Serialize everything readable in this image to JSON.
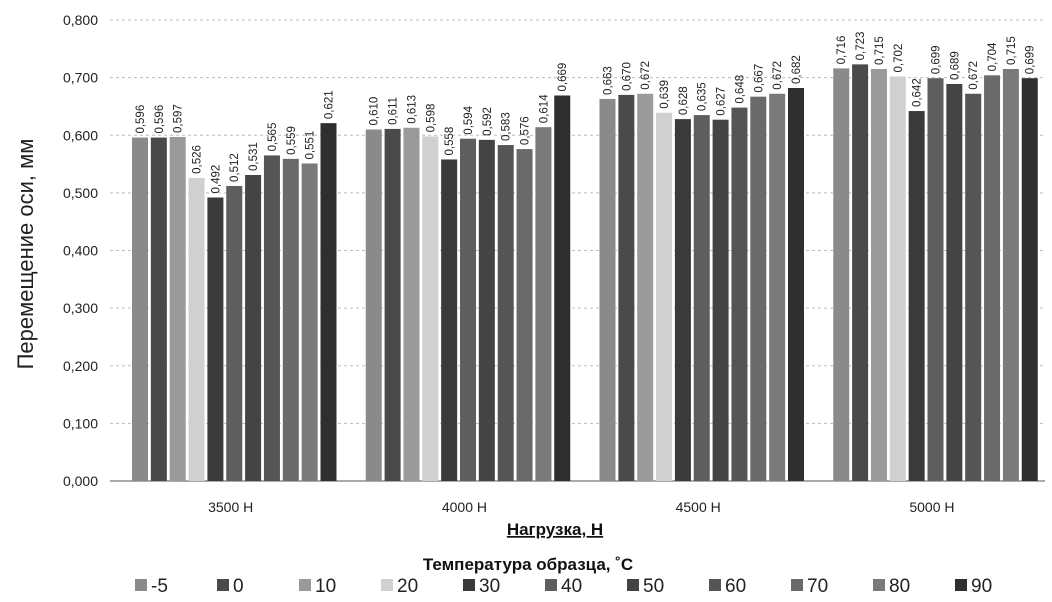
{
  "chart_data": {
    "type": "bar",
    "title": "",
    "xlabel": "Нагрузка, Н",
    "ylabel": "Перемещение оси, мм",
    "legend_title": "Температура образца, ˚С",
    "legend_position": "bottom",
    "grid": true,
    "ylim": [
      0,
      0.8
    ],
    "yticks": [
      "0,000",
      "0,100",
      "0,200",
      "0,300",
      "0,400",
      "0,500",
      "0,600",
      "0,700",
      "0,800"
    ],
    "categories": [
      "3500 Н",
      "4000 Н",
      "4500 Н",
      "5000 Н"
    ],
    "series": [
      {
        "name": "-5",
        "color": "#8a8a8a",
        "values": [
          0.596,
          0.61,
          0.663,
          0.716
        ],
        "labels": [
          "0,596",
          "0,610",
          "0,663",
          "0,716"
        ]
      },
      {
        "name": "0",
        "color": "#4a4a4a",
        "values": [
          0.596,
          0.611,
          0.67,
          0.723
        ],
        "labels": [
          "0,596",
          "0,611",
          "0,670",
          "0,723"
        ]
      },
      {
        "name": "10",
        "color": "#9a9a9a",
        "values": [
          0.597,
          0.613,
          0.672,
          0.715
        ],
        "labels": [
          "0,597",
          "0,613",
          "0,672",
          "0,715"
        ]
      },
      {
        "name": "20",
        "color": "#d0d0d0",
        "values": [
          0.526,
          0.598,
          0.639,
          0.702
        ],
        "labels": [
          "0,526",
          "0,598",
          "0,639",
          "0,702"
        ]
      },
      {
        "name": "30",
        "color": "#3a3a3a",
        "values": [
          0.492,
          0.558,
          0.628,
          0.642
        ],
        "labels": [
          "0,492",
          "0,558",
          "0,628",
          "0,642"
        ]
      },
      {
        "name": "40",
        "color": "#5e5e5e",
        "values": [
          0.512,
          0.594,
          0.635,
          0.699
        ],
        "labels": [
          "0,512",
          "0,594",
          "0,635",
          "0,699"
        ]
      },
      {
        "name": "50",
        "color": "#444444",
        "values": [
          0.531,
          0.592,
          0.627,
          0.689
        ],
        "labels": [
          "0,531",
          "0,592",
          "0,627",
          "0,689"
        ]
      },
      {
        "name": "60",
        "color": "#555555",
        "values": [
          0.565,
          0.583,
          0.648,
          0.672
        ],
        "labels": [
          "0,565",
          "0,583",
          "0,648",
          "0,672"
        ]
      },
      {
        "name": "70",
        "color": "#6a6a6a",
        "values": [
          0.559,
          0.576,
          0.667,
          0.704
        ],
        "labels": [
          "0,559",
          "0,576",
          "0,667",
          "0,704"
        ]
      },
      {
        "name": "80",
        "color": "#7a7a7a",
        "values": [
          0.551,
          0.614,
          0.672,
          0.715
        ],
        "labels": [
          "0,551",
          "0,614",
          "0,672",
          "0,715"
        ]
      },
      {
        "name": "90",
        "color": "#2f2f2f",
        "values": [
          0.621,
          0.669,
          0.682,
          0.699
        ],
        "labels": [
          "0,621",
          "0,669",
          "0,682",
          "0,699"
        ]
      }
    ]
  }
}
